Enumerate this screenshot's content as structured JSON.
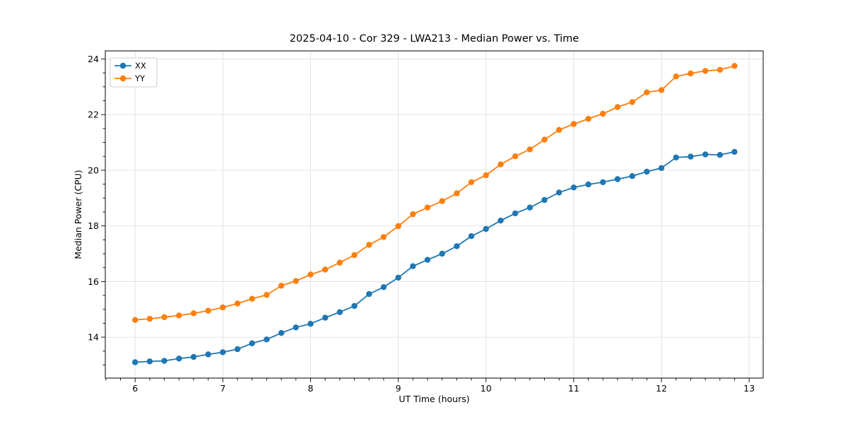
{
  "figure": {
    "title": "2025-04-10 - Cor 329 - LWA213 - Median Power vs. Time",
    "xlabel": "UT Time (hours)",
    "ylabel": "Median Power (CPU)"
  },
  "chart_data": {
    "type": "line",
    "title": "2025-04-10 - Cor 329 - LWA213 - Median Power vs. Time",
    "xlabel": "UT Time (hours)",
    "ylabel": "Median Power (CPU)",
    "x": [
      6.0,
      6.167,
      6.333,
      6.5,
      6.667,
      6.833,
      7.0,
      7.167,
      7.333,
      7.5,
      7.667,
      7.833,
      8.0,
      8.167,
      8.333,
      8.5,
      8.667,
      8.833,
      9.0,
      9.167,
      9.333,
      9.5,
      9.667,
      9.833,
      10.0,
      10.167,
      10.333,
      10.5,
      10.667,
      10.833,
      11.0,
      11.167,
      11.333,
      11.5,
      11.667,
      11.833,
      12.0,
      12.167,
      12.333,
      12.5,
      12.667,
      12.833
    ],
    "series": [
      {
        "name": "XX",
        "color": "#1f77b4",
        "values": [
          13.1,
          13.13,
          13.15,
          13.23,
          13.29,
          13.38,
          13.46,
          13.57,
          13.78,
          13.92,
          14.15,
          14.35,
          14.48,
          14.7,
          14.9,
          15.12,
          15.55,
          15.8,
          16.14,
          16.55,
          16.78,
          17.0,
          17.27,
          17.63,
          17.89,
          18.19,
          18.45,
          18.66,
          18.93,
          19.2,
          19.38,
          19.49,
          19.57,
          19.68,
          19.79,
          19.95,
          20.08,
          20.46,
          20.49,
          20.57,
          20.55,
          20.66
        ]
      },
      {
        "name": "YY",
        "color": "#ff7f0e",
        "values": [
          14.62,
          14.66,
          14.72,
          14.78,
          14.86,
          14.95,
          15.07,
          15.21,
          15.38,
          15.52,
          15.85,
          16.02,
          16.25,
          16.43,
          16.68,
          16.95,
          17.32,
          17.6,
          17.99,
          18.42,
          18.66,
          18.89,
          19.17,
          19.57,
          19.82,
          20.21,
          20.5,
          20.75,
          21.1,
          21.45,
          21.66,
          21.85,
          22.03,
          22.27,
          22.45,
          22.8,
          22.88,
          23.37,
          23.48,
          23.57,
          23.61,
          23.75
        ]
      }
    ],
    "legend": [
      "XX",
      "YY"
    ],
    "legend_position": "upper-left",
    "xticks": [
      6,
      7,
      8,
      9,
      10,
      11,
      12,
      13
    ],
    "yticks": [
      14,
      16,
      18,
      20,
      22,
      24
    ],
    "xlim": [
      5.66,
      13.16
    ],
    "ylim": [
      12.53,
      24.29
    ],
    "grid": true,
    "grid_color": "#e0e0e0",
    "axis_color": "#000000",
    "background": "#ffffff"
  }
}
